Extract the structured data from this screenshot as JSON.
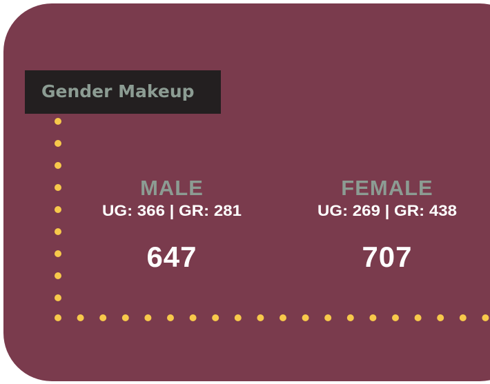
{
  "title": "Gender Makeup",
  "groups": [
    {
      "label": "MALE",
      "detail": "UG: 366 | GR: 281",
      "total": 647
    },
    {
      "label": "FEMALE",
      "detail": "UG: 269 | GR: 438",
      "total": 707
    }
  ]
}
